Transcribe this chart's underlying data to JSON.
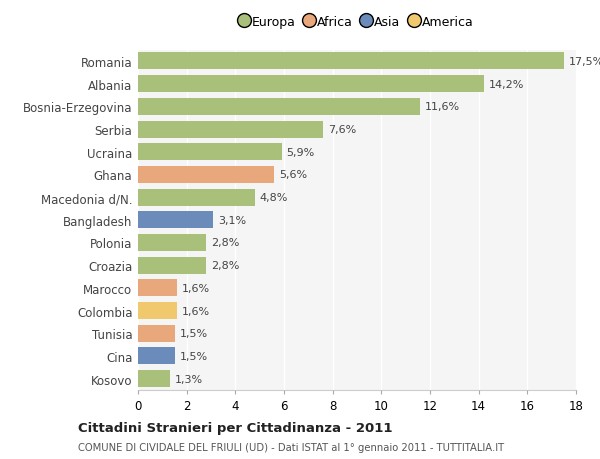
{
  "countries": [
    "Kosovo",
    "Cina",
    "Tunisia",
    "Colombia",
    "Marocco",
    "Croazia",
    "Polonia",
    "Bangladesh",
    "Macedonia d/N.",
    "Ghana",
    "Ucraina",
    "Serbia",
    "Bosnia-Erzegovina",
    "Albania",
    "Romania"
  ],
  "values": [
    1.3,
    1.5,
    1.5,
    1.6,
    1.6,
    2.8,
    2.8,
    3.1,
    4.8,
    5.6,
    5.9,
    7.6,
    11.6,
    14.2,
    17.5
  ],
  "labels": [
    "1,3%",
    "1,5%",
    "1,5%",
    "1,6%",
    "1,6%",
    "2,8%",
    "2,8%",
    "3,1%",
    "4,8%",
    "5,6%",
    "5,9%",
    "7,6%",
    "11,6%",
    "14,2%",
    "17,5%"
  ],
  "continents": [
    "Europa",
    "Asia",
    "Africa",
    "America",
    "Africa",
    "Europa",
    "Europa",
    "Asia",
    "Europa",
    "Africa",
    "Europa",
    "Europa",
    "Europa",
    "Europa",
    "Europa"
  ],
  "continent_colors": {
    "Europa": "#a8c07a",
    "Africa": "#e8a87c",
    "Asia": "#6b8cba",
    "America": "#f0c96e"
  },
  "legend_order": [
    "Europa",
    "Africa",
    "Asia",
    "America"
  ],
  "legend_colors": [
    "#a8c07a",
    "#e8a87c",
    "#6b8cba",
    "#f0c96e"
  ],
  "background_color": "#ffffff",
  "plot_bg_color": "#f5f5f5",
  "grid_color": "#ffffff",
  "title": "Cittadini Stranieri per Cittadinanza - 2011",
  "subtitle": "COMUNE DI CIVIDALE DEL FRIULI (UD) - Dati ISTAT al 1° gennaio 2011 - TUTTITALIA.IT",
  "xlim": [
    0,
    18
  ],
  "xticks": [
    0,
    2,
    4,
    6,
    8,
    10,
    12,
    14,
    16,
    18
  ],
  "bar_height": 0.75,
  "label_fontsize": 8,
  "ytick_fontsize": 8.5,
  "xtick_fontsize": 8.5
}
